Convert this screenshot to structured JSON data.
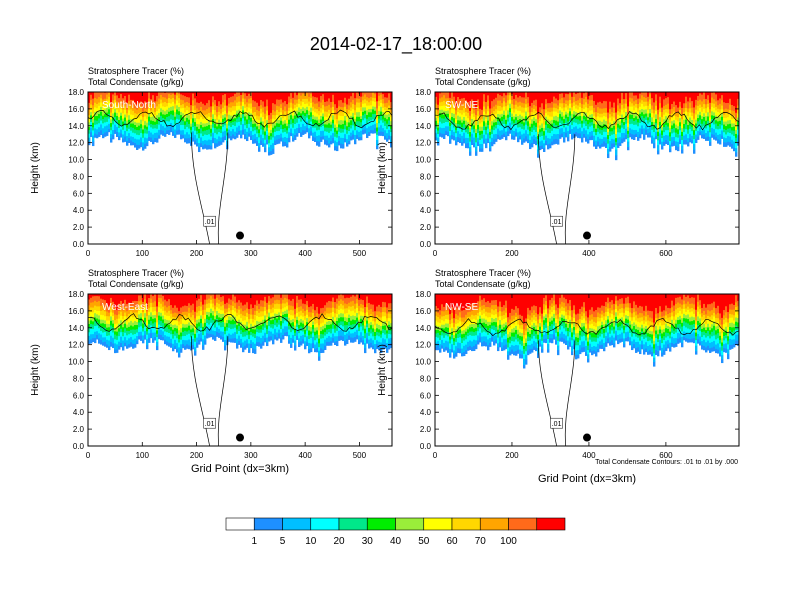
{
  "figure_title": "2014-02-17_18:00:00",
  "footnote": "Total Condensate Contours: .01 to .01 by .000",
  "colors": {
    "levels": [
      "#ffffff",
      "#1e90ff",
      "#00bfff",
      "#00ffff",
      "#00e88a",
      "#00ee00",
      "#9aee3a",
      "#ffff00",
      "#ffd700",
      "#ffa500",
      "#ff6a1a",
      "#ff0000"
    ],
    "contour": "#000000",
    "marker": "#000000"
  },
  "chart_data": [
    {
      "type": "heatmap",
      "panel": "South-North",
      "title_lines": [
        "Stratosphere Tracer   (%)",
        "Total Condensate   (g/kg)"
      ],
      "ylabel": "Height (km)",
      "xlabel": "",
      "xlim": [
        0,
        560
      ],
      "ylim": [
        0,
        18
      ],
      "xticks": [
        0,
        100,
        200,
        300,
        400,
        500
      ],
      "yticks": [
        "0.0",
        "2.0",
        "4.0",
        "6.0",
        "8.0",
        "10.0",
        "12.0",
        "14.0",
        "16.0",
        "18.0"
      ],
      "tracer_band_base_km": 12.2,
      "contour_label": ".01",
      "marker_x": 280,
      "marker_km": 1.0
    },
    {
      "type": "heatmap",
      "panel": "SW-NE",
      "title_lines": [
        "Stratosphere Tracer   (%)",
        "Total Condensate   (g/kg)"
      ],
      "ylabel": "Height (km)",
      "xlabel": "",
      "xlim": [
        0,
        790
      ],
      "ylim": [
        0,
        18
      ],
      "xticks": [
        0,
        200,
        400,
        600
      ],
      "yticks": [
        "0.0",
        "2.0",
        "4.0",
        "6.0",
        "8.0",
        "10.0",
        "12.0",
        "14.0",
        "16.0",
        "18.0"
      ],
      "tracer_band_base_km": 12.0,
      "contour_label": ".01",
      "marker_x": 395,
      "marker_km": 1.0
    },
    {
      "type": "heatmap",
      "panel": "West-East",
      "title_lines": [
        "Stratosphere Tracer   (%)",
        "Total Condensate   (g/kg)"
      ],
      "ylabel": "Height (km)",
      "xlabel": "Grid Point (dx=3km)",
      "xlim": [
        0,
        560
      ],
      "ylim": [
        0,
        18
      ],
      "xticks": [
        0,
        100,
        200,
        300,
        400,
        500
      ],
      "yticks": [
        "0.0",
        "2.0",
        "4.0",
        "6.0",
        "8.0",
        "10.0",
        "12.0",
        "14.0",
        "16.0",
        "18.0"
      ],
      "tracer_band_base_km": 12.0,
      "contour_label": ".01",
      "marker_x": 280,
      "marker_km": 1.0
    },
    {
      "type": "heatmap",
      "panel": "NW-SE",
      "title_lines": [
        "Stratosphere Tracer   (%)",
        "Total Condensate   (g/kg)"
      ],
      "ylabel": "Height (km)",
      "xlabel": "Grid Point (dx=3km)",
      "xlim": [
        0,
        790
      ],
      "ylim": [
        0,
        18
      ],
      "xticks": [
        0,
        200,
        400,
        600
      ],
      "yticks": [
        "0.0",
        "2.0",
        "4.0",
        "6.0",
        "8.0",
        "10.0",
        "12.0",
        "14.0",
        "16.0",
        "18.0"
      ],
      "tracer_band_base_km": 11.5,
      "contour_label": ".01",
      "marker_x": 395,
      "marker_km": 1.0
    }
  ],
  "colorbar": {
    "labels": [
      "1",
      "5",
      "10",
      "20",
      "30",
      "40",
      "50",
      "60",
      "70",
      "100"
    ],
    "bins": 12
  }
}
